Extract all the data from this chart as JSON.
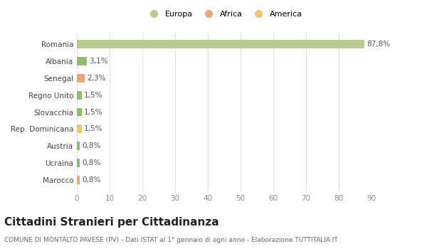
{
  "categories": [
    "Marocco",
    "Ucraina",
    "Austria",
    "Rep. Dominicana",
    "Slovacchia",
    "Regno Unito",
    "Senegal",
    "Albania",
    "Romania"
  ],
  "values": [
    0.8,
    0.8,
    0.8,
    1.5,
    1.5,
    1.5,
    2.3,
    3.1,
    87.8
  ],
  "labels": [
    "0,8%",
    "0,8%",
    "0,8%",
    "1,5%",
    "1,5%",
    "1,5%",
    "2,3%",
    "3,1%",
    "87,8%"
  ],
  "colors": [
    "#e8a87c",
    "#8fbc6e",
    "#8fbc6e",
    "#e8c86e",
    "#8fbc6e",
    "#8fbc6e",
    "#e8a87c",
    "#8fbc6e",
    "#b5cc8e"
  ],
  "legend": [
    {
      "label": "Europa",
      "color": "#b5cc8e"
    },
    {
      "label": "Africa",
      "color": "#e8a87c"
    },
    {
      "label": "America",
      "color": "#e8c86e"
    }
  ],
  "title": "Cittadini Stranieri per Cittadinanza",
  "subtitle": "COMUNE DI MONTALTO PAVESE (PV) - Dati ISTAT al 1° gennaio di ogni anno - Elaborazione TUTTITALIA.IT",
  "xlim": [
    0,
    90
  ],
  "xticks": [
    0,
    10,
    20,
    30,
    40,
    50,
    60,
    70,
    80,
    90
  ],
  "bg_color": "#ffffff",
  "grid_color": "#e0e0e0",
  "bar_height": 0.5,
  "label_fontsize": 7.5,
  "title_fontsize": 11,
  "subtitle_fontsize": 6.5,
  "ytick_fontsize": 7.5,
  "xtick_fontsize": 7.5
}
